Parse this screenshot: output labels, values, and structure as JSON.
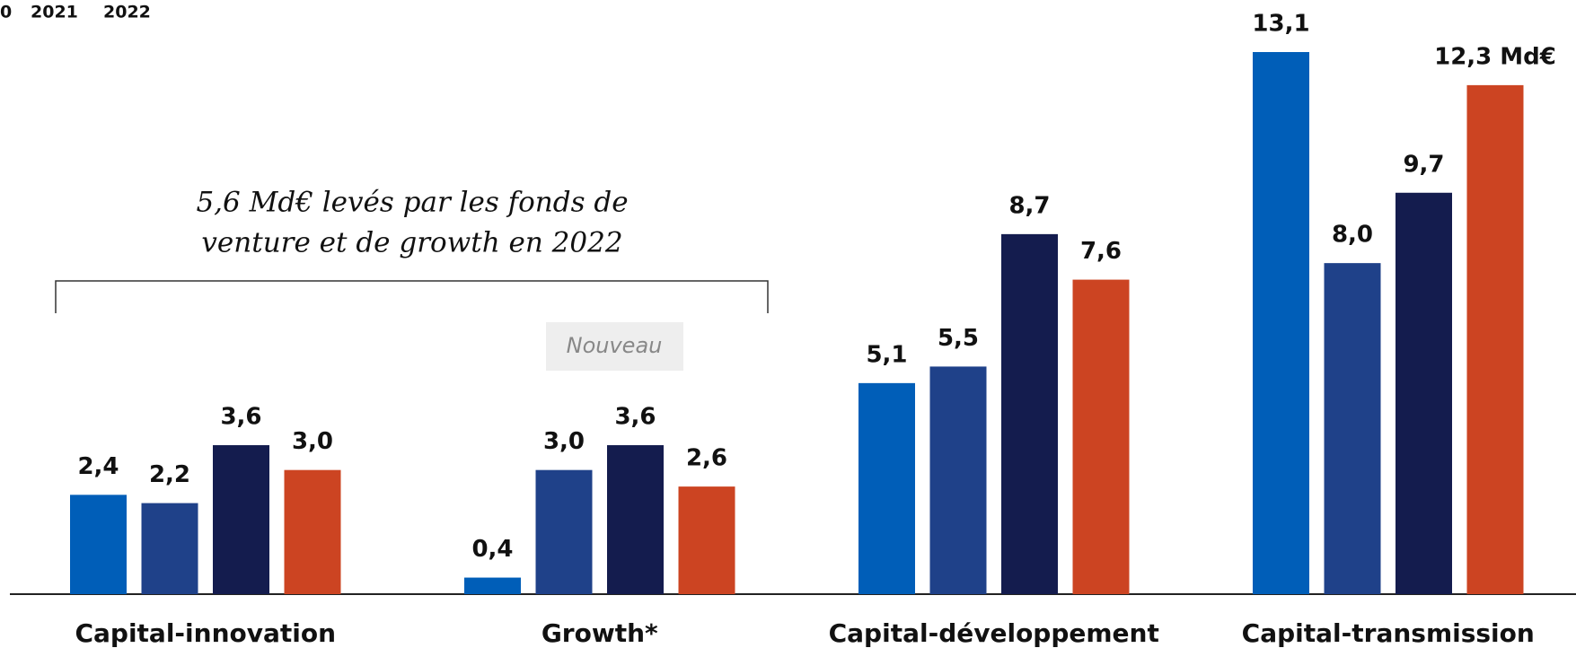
{
  "chart_data": {
    "type": "bar",
    "annotation": [
      "5,6 Md€ levés par les fonds de",
      "venture et de growth en 2022"
    ],
    "badge": "Nouveau",
    "categories": [
      "Capital-innovation",
      "Growth*",
      "Capital-développement",
      "Capital-transmission"
    ],
    "series": [
      {
        "color": "#005eb8",
        "values": [
          2.4,
          0.4,
          5.1,
          13.1
        ],
        "value_labels": [
          "2,4",
          "0,4",
          "5,1",
          "13,1"
        ]
      },
      {
        "name": "0",
        "color": "#1f4189",
        "values": [
          2.2,
          3.0,
          5.5,
          8.0
        ],
        "value_labels": [
          "2,2",
          "3,0",
          "5,5",
          "8,0"
        ]
      },
      {
        "name": "2021",
        "color": "#141c4e",
        "values": [
          3.6,
          3.6,
          8.7,
          9.7
        ],
        "value_labels": [
          "3,6",
          "3,6",
          "8,7",
          "9,7"
        ]
      },
      {
        "name": "2022",
        "color": "#cc4422",
        "values": [
          3.0,
          2.6,
          7.6,
          12.3
        ],
        "value_labels": [
          "3,0",
          "2,6",
          "7,6",
          "12,3 Md€"
        ]
      }
    ]
  }
}
